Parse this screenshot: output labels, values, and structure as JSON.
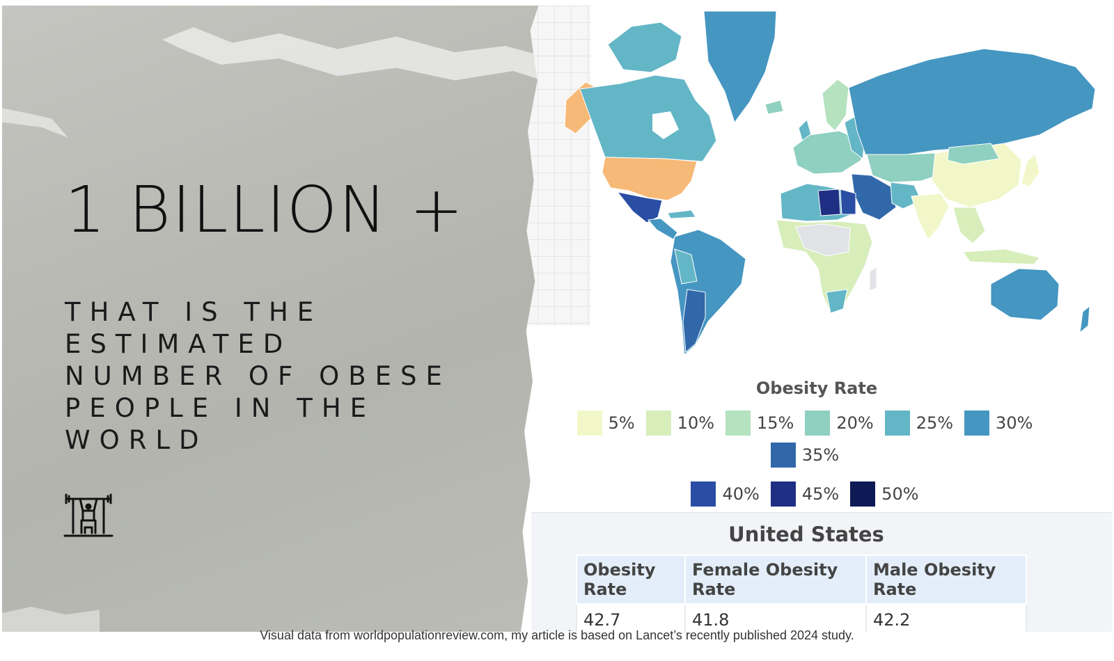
{
  "headline": "1 BILLION +",
  "subtitle": "THAT IS THE ESTIMATED NUMBER OF OBESE PEOPLE IN THE WORLD",
  "icon": "weightlifter-icon",
  "map": {
    "legend_title": "Obesity Rate",
    "legend": [
      {
        "label": "5%",
        "color": "#f1f7c8"
      },
      {
        "label": "10%",
        "color": "#d7eebb"
      },
      {
        "label": "15%",
        "color": "#b5e2bf"
      },
      {
        "label": "20%",
        "color": "#8fd0c0"
      },
      {
        "label": "25%",
        "color": "#63b6c6"
      },
      {
        "label": "30%",
        "color": "#4596c1"
      },
      {
        "label": "35%",
        "color": "#3168aa"
      },
      {
        "label": "40%",
        "color": "#2a4ea4"
      },
      {
        "label": "45%",
        "color": "#1f2f84"
      },
      {
        "label": "50%",
        "color": "#0d1a55"
      }
    ],
    "highlight_color": "#f6b977",
    "no_data_color": "#e1e3e6"
  },
  "us": {
    "title": "United States",
    "headers": [
      "Obesity Rate",
      "Female Obesity Rate",
      "Male Obesity Rate"
    ],
    "values": [
      "42.7",
      "41.8",
      "42.2"
    ]
  },
  "caption": "Visual data from worldpopulationreview.com, my article is based on Lancet’s recently published 2024 study."
}
